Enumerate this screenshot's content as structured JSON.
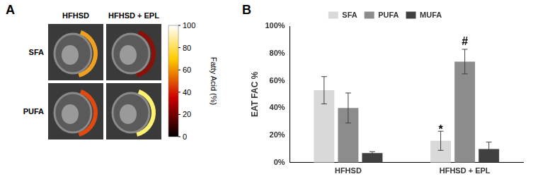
{
  "panel_a": {
    "panel": "A",
    "columns": [
      "HFHSD",
      "HFHSD + EPL"
    ],
    "rows": [
      "SFA",
      "PUFA"
    ],
    "colorbar": {
      "label": "Fatty Acid (%)",
      "range": [
        0,
        100
      ],
      "ticks": [
        0,
        20,
        40,
        60,
        80,
        100
      ]
    }
  },
  "chart_data": {
    "type": "bar",
    "panel": "B",
    "y_label": "EAT FAC %",
    "categories": [
      "HFHSD",
      "HFHSD + EPL"
    ],
    "series": [
      {
        "name": "SFA",
        "color": "#d9d9d9",
        "values": [
          53,
          16
        ],
        "error": [
          10,
          7
        ]
      },
      {
        "name": "PUFA",
        "color": "#8c8c8c",
        "values": [
          40,
          74
        ],
        "error": [
          11,
          9
        ]
      },
      {
        "name": "MUFA",
        "color": "#404040",
        "values": [
          7,
          10
        ],
        "error": [
          1,
          5
        ]
      }
    ],
    "ylim": [
      0,
      100
    ],
    "yticks": [
      {
        "value": 0,
        "label": "0%"
      },
      {
        "value": 20,
        "label": "20%"
      },
      {
        "value": 40,
        "label": "40%"
      },
      {
        "value": 60,
        "label": "60%"
      },
      {
        "value": 80,
        "label": "80%"
      },
      {
        "value": 100,
        "label": "100%"
      }
    ],
    "grid": false,
    "legend": "top",
    "annotations": [
      {
        "text": "*",
        "category": "HFHSD + EPL",
        "series": "SFA"
      },
      {
        "text": "#",
        "category": "HFHSD + EPL",
        "series": "PUFA"
      }
    ]
  }
}
